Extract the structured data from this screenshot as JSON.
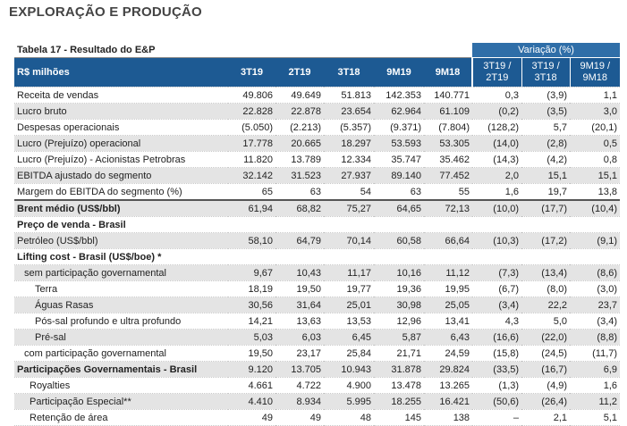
{
  "title": "EXPLORAÇÃO E PRODUÇÃO",
  "table": {
    "caption": "Tabela 17 - Resultado do E&P",
    "group_header": "Variação (%)",
    "columns": [
      "R$ milhões",
      "3T19",
      "2T19",
      "3T18",
      "9M19",
      "9M18",
      "3T19 / 2T19",
      "3T19 / 3T18",
      "9M19 / 9M18"
    ],
    "rows": [
      [
        "Receita de vendas",
        "49.806",
        "49.649",
        "51.813",
        "142.353",
        "140.771",
        "0,3",
        "(3,9)",
        "1,1"
      ],
      [
        "Lucro bruto",
        "22.828",
        "22.878",
        "23.654",
        "62.964",
        "61.109",
        "(0,2)",
        "(3,5)",
        "3,0"
      ],
      [
        "Despesas operacionais",
        "(5.050)",
        "(2.213)",
        "(5.357)",
        "(9.371)",
        "(7.804)",
        "(128,2)",
        "5,7",
        "(20,1)"
      ],
      [
        "Lucro (Prejuízo) operacional",
        "17.778",
        "20.665",
        "18.297",
        "53.593",
        "53.305",
        "(14,0)",
        "(2,8)",
        "0,5"
      ],
      [
        "Lucro (Prejuízo) - Acionistas Petrobras",
        "11.820",
        "13.789",
        "12.334",
        "35.747",
        "35.462",
        "(14,3)",
        "(4,2)",
        "0,8"
      ],
      [
        "EBITDA ajustado do segmento",
        "32.142",
        "31.523",
        "27.937",
        "89.140",
        "77.452",
        "2,0",
        "15,1",
        "15,1"
      ],
      [
        "Margem do EBITDA do segmento (%)",
        "65",
        "63",
        "54",
        "63",
        "55",
        "1,6",
        "19,7",
        "13,8"
      ],
      [
        "Brent médio (US$/bbl)",
        "61,94",
        "68,82",
        "75,27",
        "64,65",
        "72,13",
        "(10,0)",
        "(17,7)",
        "(10,4)"
      ],
      [
        "Preço de venda - Brasil"
      ],
      [
        "Petróleo (US$/bbl)",
        "58,10",
        "64,79",
        "70,14",
        "60,58",
        "66,64",
        "(10,3)",
        "(17,2)",
        "(9,1)"
      ],
      [
        "Lifting cost - Brasil (US$/boe) *"
      ],
      [
        "sem participação governamental",
        "9,67",
        "10,43",
        "11,17",
        "10,16",
        "11,12",
        "(7,3)",
        "(13,4)",
        "(8,6)"
      ],
      [
        "Terra",
        "18,19",
        "19,50",
        "19,77",
        "19,36",
        "19,95",
        "(6,7)",
        "(8,0)",
        "(3,0)"
      ],
      [
        "Águas Rasas",
        "30,56",
        "31,64",
        "25,01",
        "30,98",
        "25,05",
        "(3,4)",
        "22,2",
        "23,7"
      ],
      [
        "Pós-sal profundo e ultra profundo",
        "14,21",
        "13,63",
        "13,53",
        "12,96",
        "13,41",
        "4,3",
        "5,0",
        "(3,4)"
      ],
      [
        "Pré-sal",
        "5,03",
        "6,03",
        "6,45",
        "5,87",
        "6,43",
        "(16,6)",
        "(22,0)",
        "(8,8)"
      ],
      [
        "com participação governamental",
        "19,50",
        "23,17",
        "25,84",
        "21,71",
        "24,59",
        "(15,8)",
        "(24,5)",
        "(11,7)"
      ],
      [
        "Participações Governamentais - Brasil",
        "9.120",
        "13.705",
        "10.943",
        "31.878",
        "29.824",
        "(33,5)",
        "(16,7)",
        "6,9"
      ],
      [
        "Royalties",
        "4.661",
        "4.722",
        "4.900",
        "13.478",
        "13.265",
        "(1,3)",
        "(4,9)",
        "1,6"
      ],
      [
        "Participação Especial**",
        "4.410",
        "8.934",
        "5.995",
        "18.255",
        "16.421",
        "(50,6)",
        "(26,4)",
        "11,2"
      ],
      [
        "Retenção de área",
        "49",
        "49",
        "48",
        "145",
        "138",
        "–",
        "2,1",
        "5,1"
      ]
    ]
  }
}
